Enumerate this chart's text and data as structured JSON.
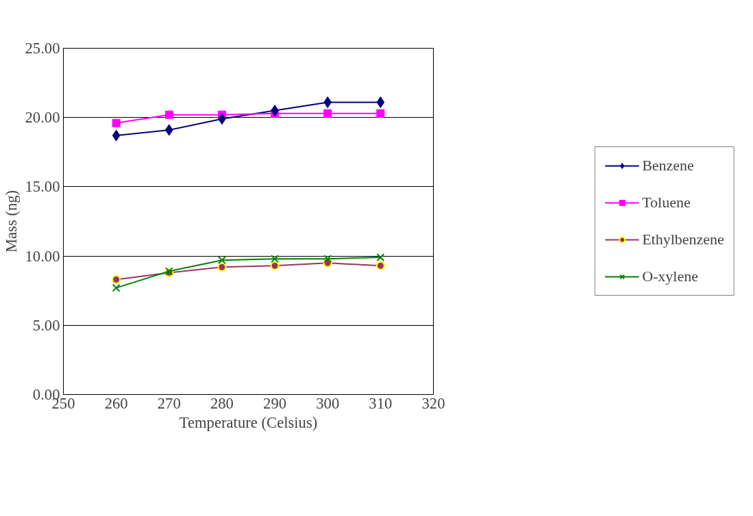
{
  "chart_data": {
    "type": "line",
    "xlabel": "Temperature (Celsius)",
    "ylabel": "Mass (ng)",
    "x": [
      260,
      270,
      280,
      290,
      300,
      310
    ],
    "xlim": [
      250,
      320
    ],
    "xticks": [
      250,
      260,
      270,
      280,
      290,
      300,
      310,
      320
    ],
    "ylim": [
      0,
      25
    ],
    "yticks": [
      {
        "value": 0,
        "label": "0.00"
      },
      {
        "value": 5,
        "label": "5.00"
      },
      {
        "value": 10,
        "label": "10.00"
      },
      {
        "value": 15,
        "label": "15.00"
      },
      {
        "value": 20,
        "label": "20.00"
      },
      {
        "value": 25,
        "label": "25.00"
      }
    ],
    "grid": "y",
    "legend": "right",
    "series": [
      {
        "name": "Benzene",
        "color": "#000080",
        "marker": "diamond",
        "values": [
          18.7,
          19.1,
          19.9,
          20.5,
          21.1,
          21.1
        ]
      },
      {
        "name": "Toluene",
        "color": "#ff00ff",
        "marker": "square",
        "values": [
          19.6,
          20.2,
          20.2,
          20.3,
          20.3,
          20.3
        ]
      },
      {
        "name": "Ethylbenzene",
        "color": "#993366",
        "marker": "circle",
        "values": [
          8.3,
          8.8,
          9.2,
          9.3,
          9.5,
          9.3
        ]
      },
      {
        "name": "O-xylene",
        "color": "#008000",
        "marker": "cross",
        "values": [
          7.7,
          8.9,
          9.7,
          9.8,
          9.8,
          9.9
        ]
      }
    ]
  }
}
